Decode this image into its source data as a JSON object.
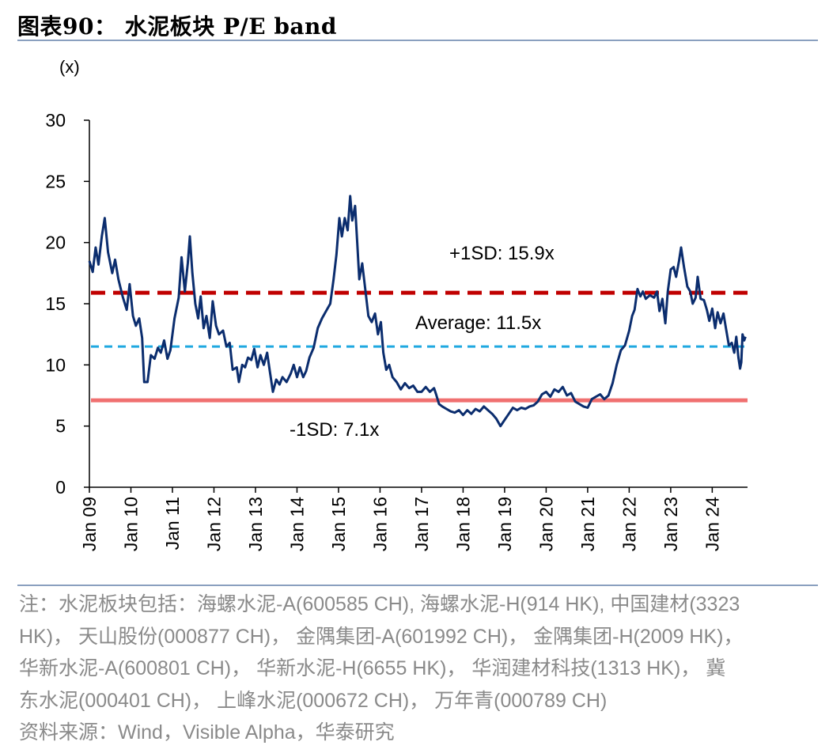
{
  "title": "图表90： 水泥板块 P/E band",
  "notes": [
    "注：水泥板块包括：海螺水泥-A(600585 CH), 海螺水泥-H(914 HK), 中国建材(3323",
    "HK)， 天山股份(000877 CH)， 金隅集团-A(601992 CH)， 金隅集团-H(2009 HK)，",
    "华新水泥-A(600801 CH)， 华新水泥-H(6655 HK)， 华润建材科技(1313 HK)， 冀",
    "东水泥(000401 CH)， 上峰水泥(000672 CH)， 万年青(000789 CH)"
  ],
  "source": "资料来源：Wind，Visible Alpha，华泰研究",
  "chart_data": {
    "type": "line",
    "ylabel": "(x)",
    "ylim": [
      0,
      30
    ],
    "yticks": [
      0,
      5,
      10,
      15,
      20,
      25,
      30
    ],
    "xlim": [
      2009.0,
      2024.85
    ],
    "xticks": [
      "Jan 09",
      "Jan 10",
      "Jan 11",
      "Jan 12",
      "Jan 13",
      "Jan 14",
      "Jan 15",
      "Jan 16",
      "Jan 17",
      "Jan 18",
      "Jan 19",
      "Jan 20",
      "Jan 21",
      "Jan 22",
      "Jan 23",
      "Jan 24"
    ],
    "colors": {
      "pe": "#0b2d6e",
      "plus_sd": "#c00000",
      "average": "#1fa8e0",
      "minus_sd": "#f07070",
      "axis": "#000000"
    },
    "reference_lines": [
      {
        "name": "+1SD",
        "label": "+1SD: 15.9x",
        "value": 15.9,
        "style": "dashed"
      },
      {
        "name": "Average",
        "label": "Average: 11.5x",
        "value": 11.5,
        "style": "dashed"
      },
      {
        "name": "-1SD",
        "label": "-1SD: 7.1x",
        "value": 7.1,
        "style": "solid"
      }
    ],
    "series": [
      {
        "name": "P/E",
        "points": [
          [
            2009.0,
            18.5
          ],
          [
            2009.08,
            17.6
          ],
          [
            2009.15,
            19.6
          ],
          [
            2009.22,
            18.2
          ],
          [
            2009.3,
            20.5
          ],
          [
            2009.37,
            22.0
          ],
          [
            2009.45,
            19.2
          ],
          [
            2009.55,
            17.5
          ],
          [
            2009.62,
            18.6
          ],
          [
            2009.7,
            17.0
          ],
          [
            2009.8,
            15.6
          ],
          [
            2009.9,
            14.5
          ],
          [
            2009.97,
            16.6
          ],
          [
            2010.05,
            14.0
          ],
          [
            2010.12,
            13.2
          ],
          [
            2010.2,
            13.8
          ],
          [
            2010.27,
            12.2
          ],
          [
            2010.32,
            8.6
          ],
          [
            2010.4,
            8.6
          ],
          [
            2010.48,
            10.8
          ],
          [
            2010.57,
            10.5
          ],
          [
            2010.65,
            11.4
          ],
          [
            2010.72,
            11.0
          ],
          [
            2010.8,
            12.0
          ],
          [
            2010.88,
            10.5
          ],
          [
            2010.95,
            11.2
          ],
          [
            2011.05,
            13.8
          ],
          [
            2011.15,
            15.5
          ],
          [
            2011.22,
            18.8
          ],
          [
            2011.3,
            16.0
          ],
          [
            2011.37,
            18.3
          ],
          [
            2011.42,
            20.5
          ],
          [
            2011.48,
            17.5
          ],
          [
            2011.55,
            15.0
          ],
          [
            2011.62,
            13.8
          ],
          [
            2011.68,
            15.6
          ],
          [
            2011.75,
            13.0
          ],
          [
            2011.82,
            14.0
          ],
          [
            2011.9,
            12.2
          ],
          [
            2011.97,
            15.2
          ],
          [
            2012.05,
            13.2
          ],
          [
            2012.12,
            12.5
          ],
          [
            2012.22,
            12.8
          ],
          [
            2012.3,
            11.5
          ],
          [
            2012.38,
            11.8
          ],
          [
            2012.45,
            9.6
          ],
          [
            2012.55,
            9.8
          ],
          [
            2012.6,
            8.6
          ],
          [
            2012.68,
            10.0
          ],
          [
            2012.75,
            9.8
          ],
          [
            2012.82,
            10.6
          ],
          [
            2012.9,
            10.4
          ],
          [
            2012.97,
            11.3
          ],
          [
            2013.05,
            9.8
          ],
          [
            2013.12,
            10.8
          ],
          [
            2013.2,
            10.0
          ],
          [
            2013.28,
            11.0
          ],
          [
            2013.35,
            9.4
          ],
          [
            2013.42,
            7.8
          ],
          [
            2013.5,
            8.8
          ],
          [
            2013.58,
            8.4
          ],
          [
            2013.65,
            9.0
          ],
          [
            2013.75,
            8.6
          ],
          [
            2013.85,
            9.3
          ],
          [
            2013.92,
            10.0
          ],
          [
            2014.0,
            9.0
          ],
          [
            2014.07,
            9.8
          ],
          [
            2014.15,
            9.0
          ],
          [
            2014.22,
            9.5
          ],
          [
            2014.3,
            10.6
          ],
          [
            2014.4,
            11.4
          ],
          [
            2014.5,
            13.0
          ],
          [
            2014.6,
            13.8
          ],
          [
            2014.7,
            14.4
          ],
          [
            2014.8,
            15.0
          ],
          [
            2014.88,
            17.0
          ],
          [
            2014.95,
            19.0
          ],
          [
            2015.02,
            22.0
          ],
          [
            2015.08,
            20.5
          ],
          [
            2015.15,
            22.0
          ],
          [
            2015.22,
            21.0
          ],
          [
            2015.28,
            23.8
          ],
          [
            2015.33,
            21.8
          ],
          [
            2015.4,
            23.0
          ],
          [
            2015.45,
            20.0
          ],
          [
            2015.5,
            17.0
          ],
          [
            2015.57,
            18.3
          ],
          [
            2015.65,
            16.0
          ],
          [
            2015.72,
            14.0
          ],
          [
            2015.8,
            13.5
          ],
          [
            2015.88,
            14.2
          ],
          [
            2015.95,
            12.5
          ],
          [
            2016.02,
            13.5
          ],
          [
            2016.08,
            11.0
          ],
          [
            2016.15,
            9.6
          ],
          [
            2016.22,
            10.0
          ],
          [
            2016.3,
            9.0
          ],
          [
            2016.4,
            8.6
          ],
          [
            2016.5,
            8.0
          ],
          [
            2016.6,
            8.5
          ],
          [
            2016.7,
            8.1
          ],
          [
            2016.8,
            8.3
          ],
          [
            2016.9,
            7.8
          ],
          [
            2017.0,
            7.8
          ],
          [
            2017.1,
            8.2
          ],
          [
            2017.2,
            7.8
          ],
          [
            2017.3,
            8.1
          ],
          [
            2017.35,
            7.6
          ],
          [
            2017.42,
            6.8
          ],
          [
            2017.5,
            6.6
          ],
          [
            2017.6,
            6.4
          ],
          [
            2017.7,
            6.2
          ],
          [
            2017.8,
            6.1
          ],
          [
            2017.9,
            6.3
          ],
          [
            2018.0,
            5.9
          ],
          [
            2018.1,
            6.3
          ],
          [
            2018.2,
            6.0
          ],
          [
            2018.3,
            6.4
          ],
          [
            2018.4,
            6.2
          ],
          [
            2018.5,
            6.6
          ],
          [
            2018.6,
            6.3
          ],
          [
            2018.7,
            6.0
          ],
          [
            2018.8,
            5.6
          ],
          [
            2018.9,
            5.0
          ],
          [
            2019.0,
            5.5
          ],
          [
            2019.1,
            6.0
          ],
          [
            2019.2,
            6.5
          ],
          [
            2019.3,
            6.3
          ],
          [
            2019.4,
            6.5
          ],
          [
            2019.5,
            6.4
          ],
          [
            2019.6,
            6.6
          ],
          [
            2019.7,
            6.7
          ],
          [
            2019.8,
            7.0
          ],
          [
            2019.9,
            7.6
          ],
          [
            2020.0,
            7.8
          ],
          [
            2020.1,
            7.4
          ],
          [
            2020.2,
            8.0
          ],
          [
            2020.3,
            7.8
          ],
          [
            2020.4,
            8.2
          ],
          [
            2020.5,
            7.5
          ],
          [
            2020.6,
            7.7
          ],
          [
            2020.7,
            7.0
          ],
          [
            2020.8,
            6.8
          ],
          [
            2020.9,
            6.6
          ],
          [
            2021.0,
            6.5
          ],
          [
            2021.1,
            7.2
          ],
          [
            2021.2,
            7.4
          ],
          [
            2021.3,
            7.6
          ],
          [
            2021.4,
            7.2
          ],
          [
            2021.5,
            7.5
          ],
          [
            2021.6,
            8.5
          ],
          [
            2021.7,
            10.0
          ],
          [
            2021.8,
            11.2
          ],
          [
            2021.9,
            11.6
          ],
          [
            2022.0,
            12.8
          ],
          [
            2022.07,
            14.0
          ],
          [
            2022.13,
            14.5
          ],
          [
            2022.2,
            16.2
          ],
          [
            2022.27,
            15.6
          ],
          [
            2022.33,
            16.0
          ],
          [
            2022.4,
            15.4
          ],
          [
            2022.5,
            15.7
          ],
          [
            2022.6,
            15.5
          ],
          [
            2022.67,
            16.0
          ],
          [
            2022.73,
            14.4
          ],
          [
            2022.8,
            15.4
          ],
          [
            2022.87,
            13.4
          ],
          [
            2022.93,
            16.0
          ],
          [
            2023.0,
            17.8
          ],
          [
            2023.07,
            18.0
          ],
          [
            2023.13,
            17.2
          ],
          [
            2023.2,
            18.5
          ],
          [
            2023.25,
            19.6
          ],
          [
            2023.32,
            18.0
          ],
          [
            2023.4,
            16.4
          ],
          [
            2023.47,
            16.0
          ],
          [
            2023.53,
            15.0
          ],
          [
            2023.6,
            15.5
          ],
          [
            2023.65,
            17.2
          ],
          [
            2023.72,
            15.4
          ],
          [
            2023.8,
            15.3
          ],
          [
            2023.87,
            14.5
          ],
          [
            2023.93,
            13.6
          ],
          [
            2024.0,
            14.6
          ],
          [
            2024.07,
            13.0
          ],
          [
            2024.13,
            14.3
          ],
          [
            2024.2,
            13.4
          ],
          [
            2024.27,
            14.2
          ],
          [
            2024.33,
            13.0
          ],
          [
            2024.4,
            11.6
          ],
          [
            2024.47,
            11.8
          ],
          [
            2024.53,
            11.0
          ],
          [
            2024.58,
            12.3
          ],
          [
            2024.63,
            10.6
          ],
          [
            2024.67,
            9.7
          ],
          [
            2024.7,
            10.2
          ],
          [
            2024.73,
            12.5
          ],
          [
            2024.77,
            12.0
          ],
          [
            2024.8,
            12.3
          ]
        ]
      }
    ]
  }
}
